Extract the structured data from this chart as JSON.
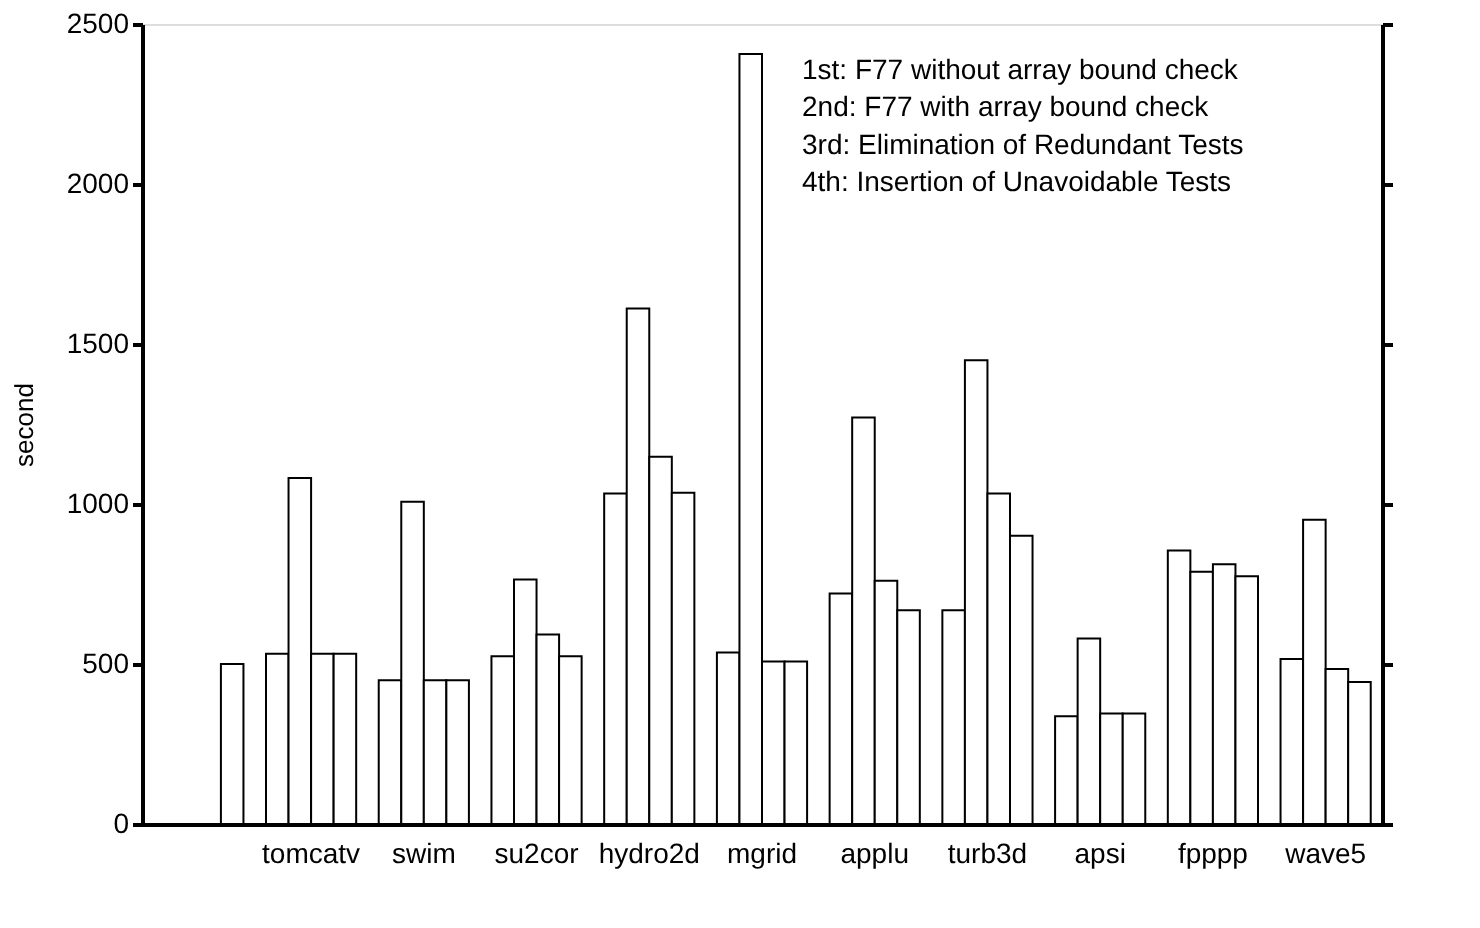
{
  "chart_data": {
    "type": "bar",
    "ylabel": "second",
    "categories": [
      null,
      "tomcatv",
      "swim",
      "su2cor",
      "hydro2d",
      "mgrid",
      "applu",
      "turb3d",
      "apsi",
      "fpppp",
      "wave5"
    ],
    "series": [
      {
        "color": "#ffffff",
        "values": [
          null,
          532,
          449,
          524,
          1033,
          536,
          720,
          668,
          337,
          855,
          516
        ]
      },
      {
        "color": "#ffffff",
        "values": [
          null,
          1081,
          1007,
          764,
          1611,
          2406,
          1270,
          1449,
          580,
          788,
          951
        ]
      },
      {
        "color": "#ffffff",
        "values": [
          null,
          532,
          449,
          592,
          1148,
          508,
          760,
          1033,
          345,
          812,
          484
        ]
      },
      {
        "color": "#ffffff",
        "values": [
          500,
          532,
          449,
          524,
          1035,
          508,
          668,
          901,
          345,
          774,
          444
        ]
      }
    ],
    "ylim": [
      0,
      2500
    ],
    "yticks": [
      0,
      500,
      1000,
      1500,
      2000,
      2500
    ],
    "grid": false,
    "legend": false,
    "annotations": [
      "1st: F77 without array bound check",
      "2nd: F77 with array bound check",
      "3rd: Elimination of Redundant Tests",
      "4th: Insertion of Unavoidable Tests"
    ]
  }
}
